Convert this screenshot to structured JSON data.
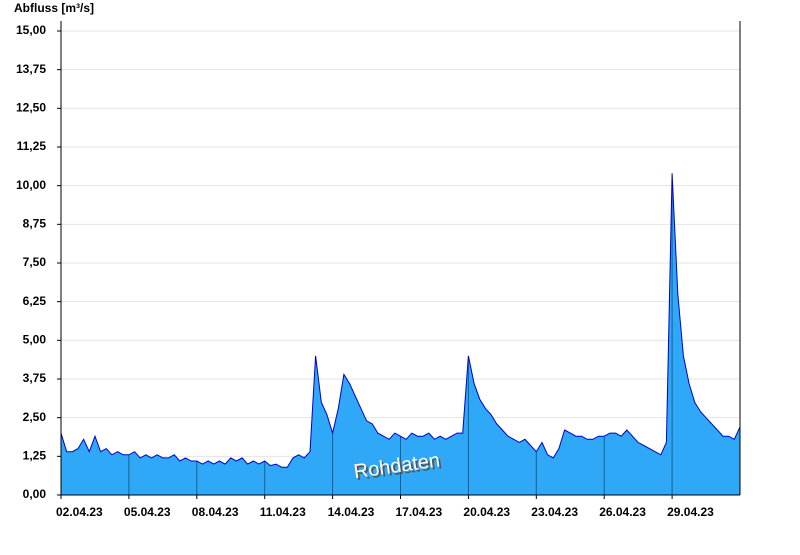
{
  "chart_data": {
    "type": "area",
    "title": "Abfluss [m³/s]",
    "annotation": "Rohdaten",
    "x": [
      0,
      0.25,
      0.5,
      0.75,
      1,
      1.25,
      1.5,
      1.75,
      2,
      2.25,
      2.5,
      2.75,
      3,
      3.25,
      3.5,
      3.75,
      4,
      4.25,
      4.5,
      4.75,
      5,
      5.25,
      5.5,
      5.75,
      6,
      6.25,
      6.5,
      6.75,
      7,
      7.25,
      7.5,
      7.75,
      8,
      8.25,
      8.5,
      8.75,
      9,
      9.25,
      9.5,
      9.75,
      10,
      10.25,
      10.5,
      10.75,
      11,
      11.25,
      11.5,
      11.75,
      12,
      12.25,
      12.5,
      12.75,
      13,
      13.25,
      13.5,
      13.75,
      14,
      14.25,
      14.5,
      14.75,
      15,
      15.25,
      15.5,
      15.75,
      16,
      16.25,
      16.5,
      16.75,
      17,
      17.25,
      17.5,
      17.75,
      18,
      18.25,
      18.5,
      18.75,
      19,
      19.25,
      19.5,
      19.75,
      20,
      20.25,
      20.5,
      20.75,
      21,
      21.25,
      21.5,
      21.75,
      22,
      22.25,
      22.5,
      22.75,
      23,
      23.25,
      23.5,
      23.75,
      24,
      24.25,
      24.5,
      24.75,
      25,
      25.25,
      25.5,
      25.75,
      26,
      26.25,
      26.5,
      26.75,
      27,
      27.25,
      27.5,
      27.75,
      28,
      28.25,
      28.5,
      28.75,
      29,
      29.25,
      29.5,
      29.75,
      30
    ],
    "series": [
      {
        "color": "#2ea8f7",
        "line_color": "#0000cc",
        "values": [
          2.0,
          1.4,
          1.4,
          1.5,
          1.8,
          1.4,
          1.9,
          1.4,
          1.5,
          1.3,
          1.4,
          1.3,
          1.3,
          1.4,
          1.2,
          1.3,
          1.2,
          1.3,
          1.2,
          1.2,
          1.3,
          1.1,
          1.2,
          1.1,
          1.1,
          1.0,
          1.1,
          1.0,
          1.1,
          1.0,
          1.2,
          1.1,
          1.2,
          1.0,
          1.1,
          1.0,
          1.1,
          0.95,
          1.0,
          0.9,
          0.9,
          1.2,
          1.3,
          1.2,
          1.4,
          4.5,
          3.0,
          2.6,
          2.0,
          2.8,
          3.9,
          3.6,
          3.2,
          2.8,
          2.4,
          2.3,
          2.0,
          1.9,
          1.8,
          2.0,
          1.9,
          1.8,
          2.0,
          1.9,
          1.9,
          2.0,
          1.8,
          1.9,
          1.8,
          1.9,
          2.0,
          2.0,
          4.5,
          3.6,
          3.1,
          2.8,
          2.6,
          2.3,
          2.1,
          1.9,
          1.8,
          1.7,
          1.8,
          1.6,
          1.4,
          1.7,
          1.3,
          1.2,
          1.5,
          2.1,
          2.0,
          1.9,
          1.9,
          1.8,
          1.8,
          1.9,
          1.9,
          2.0,
          2.0,
          1.9,
          2.1,
          1.9,
          1.7,
          1.6,
          1.5,
          1.4,
          1.3,
          1.7,
          10.4,
          6.5,
          4.5,
          3.6,
          3.0,
          2.7,
          2.5,
          2.3,
          2.1,
          1.9,
          1.9,
          1.8,
          2.2
        ]
      }
    ],
    "xlim": [
      0,
      30
    ],
    "xticks": [
      {
        "value": 0,
        "label": "02.04.23"
      },
      {
        "value": 3,
        "label": "05.04.23"
      },
      {
        "value": 6,
        "label": "08.04.23"
      },
      {
        "value": 9,
        "label": "11.04.23"
      },
      {
        "value": 12,
        "label": "14.04.23"
      },
      {
        "value": 15,
        "label": "17.04.23"
      },
      {
        "value": 18,
        "label": "20.04.23"
      },
      {
        "value": 21,
        "label": "23.04.23"
      },
      {
        "value": 24,
        "label": "26.04.23"
      },
      {
        "value": 27,
        "label": "29.04.23"
      }
    ],
    "ylim": [
      0,
      15
    ],
    "yticks": [
      {
        "value": 0,
        "label": "0,00"
      },
      {
        "value": 1.25,
        "label": "1,25"
      },
      {
        "value": 2.5,
        "label": "2,50"
      },
      {
        "value": 3.75,
        "label": "3,75"
      },
      {
        "value": 5,
        "label": "5,00"
      },
      {
        "value": 6.25,
        "label": "6,25"
      },
      {
        "value": 7.5,
        "label": "7,50"
      },
      {
        "value": 8.75,
        "label": "8,75"
      },
      {
        "value": 10,
        "label": "10,00"
      },
      {
        "value": 11.25,
        "label": "11,25"
      },
      {
        "value": 12.5,
        "label": "12,50"
      },
      {
        "value": 13.75,
        "label": "13,75"
      },
      {
        "value": 15,
        "label": "15,00"
      }
    ],
    "grid": true
  }
}
